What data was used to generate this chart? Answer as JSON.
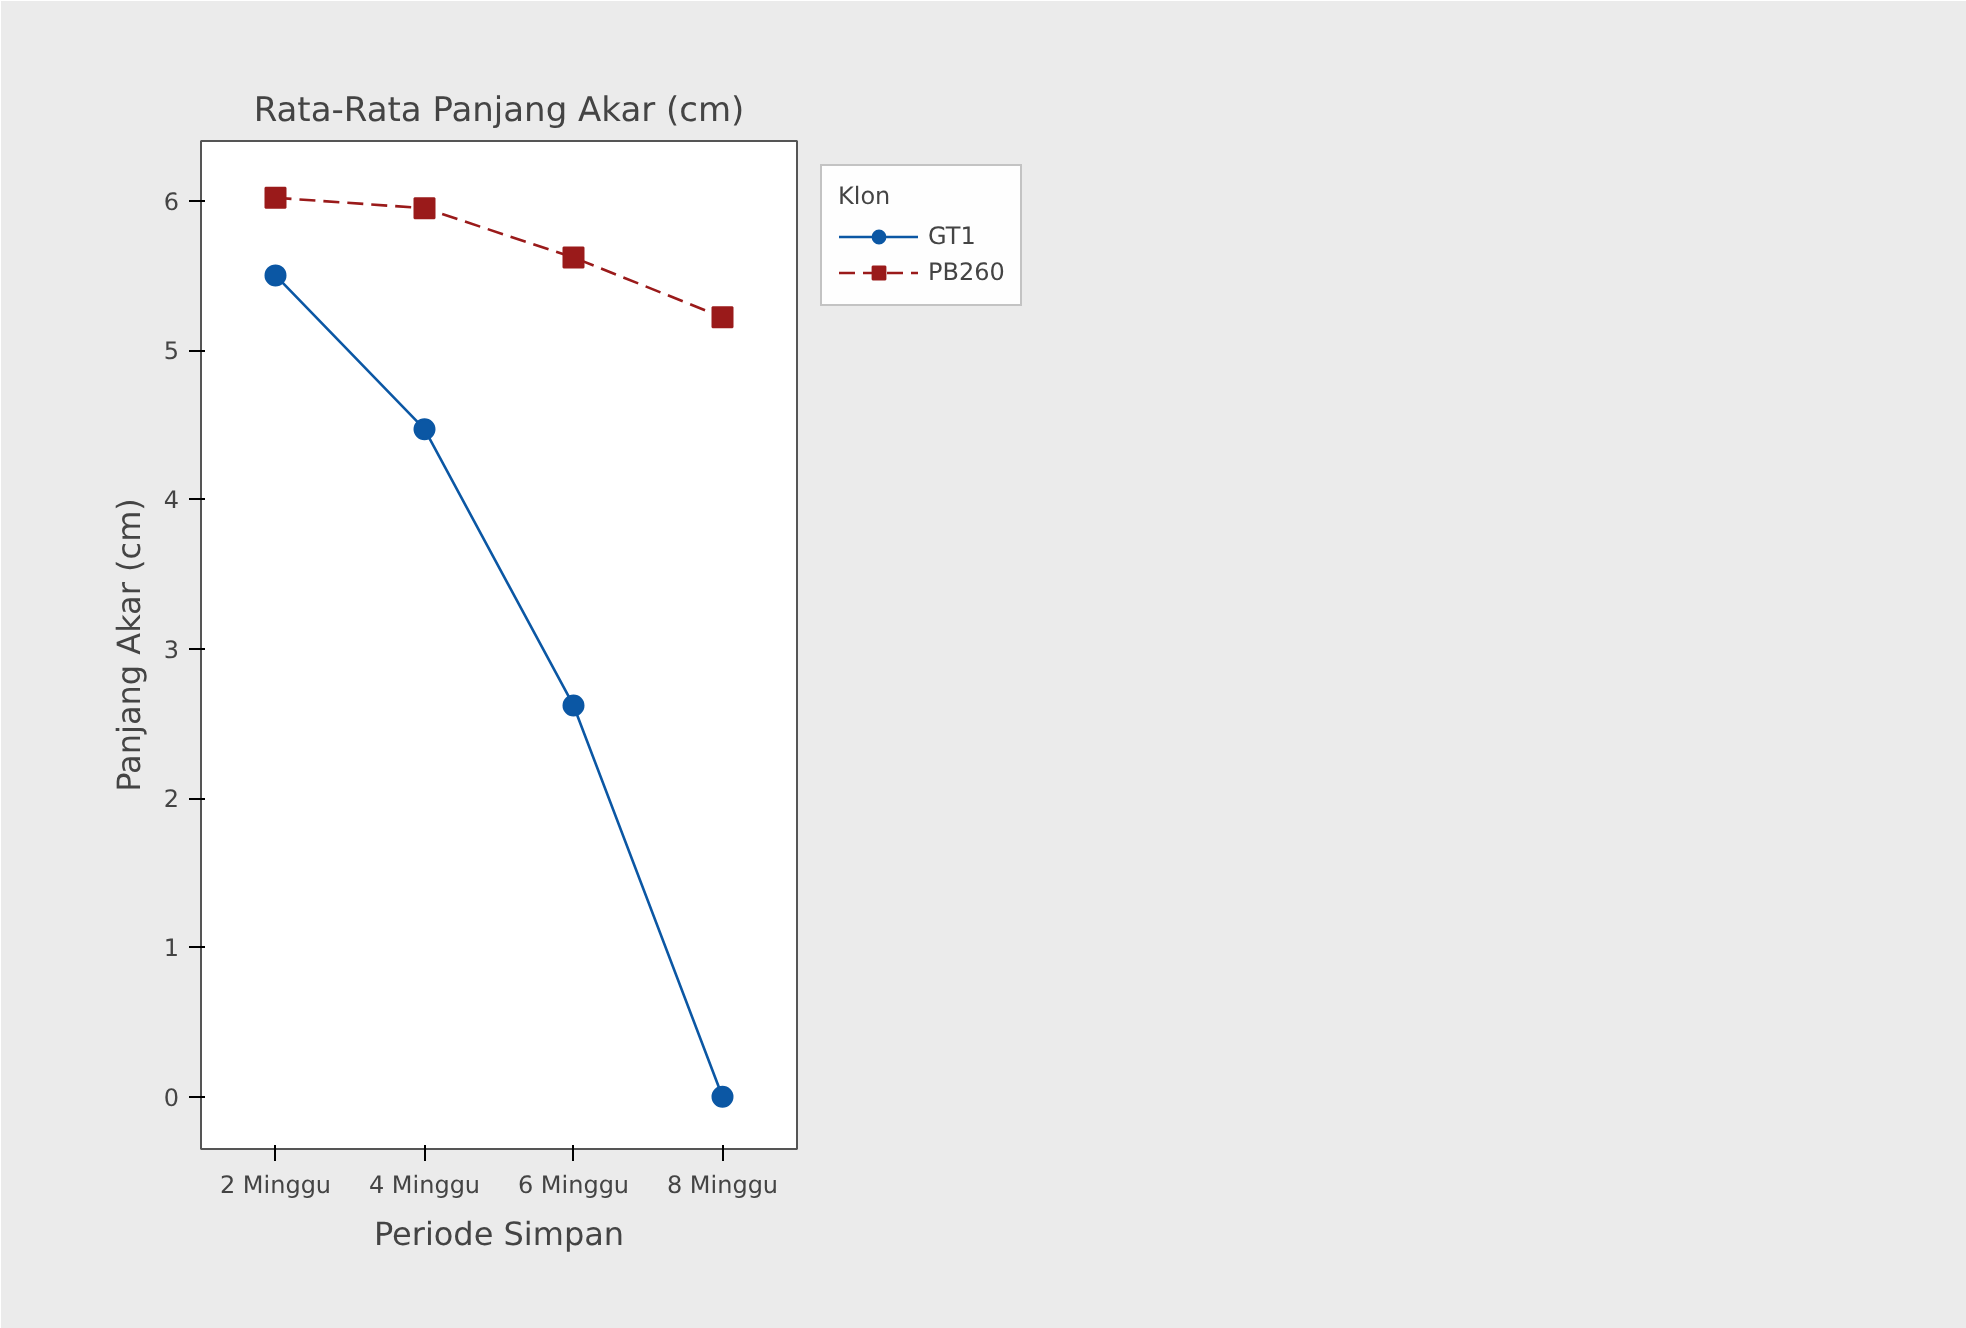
{
  "chart_data": {
    "type": "line",
    "title": "Rata-Rata Panjang Akar (cm)",
    "xlabel": "Periode Simpan",
    "ylabel": "Panjang Akar (cm)",
    "legend_title": "Klon",
    "categories": [
      "2 Minggu",
      "4 Minggu",
      "6 Minggu",
      "8 Minggu"
    ],
    "series": [
      {
        "name": "GT1",
        "color": "#0b57a4",
        "values": [
          5.5,
          4.47,
          2.62,
          0
        ],
        "marker": "circle",
        "line_style": "solid"
      },
      {
        "name": "PB260",
        "color": "#9a1a1a",
        "values": [
          6.02,
          5.95,
          5.62,
          5.22
        ],
        "marker": "square",
        "line_style": "dashed"
      }
    ],
    "ylim": [
      -0.35,
      6.4
    ],
    "yticks": [
      0,
      1,
      2,
      3,
      4,
      5,
      6
    ],
    "grid": false,
    "legend": "top right"
  }
}
